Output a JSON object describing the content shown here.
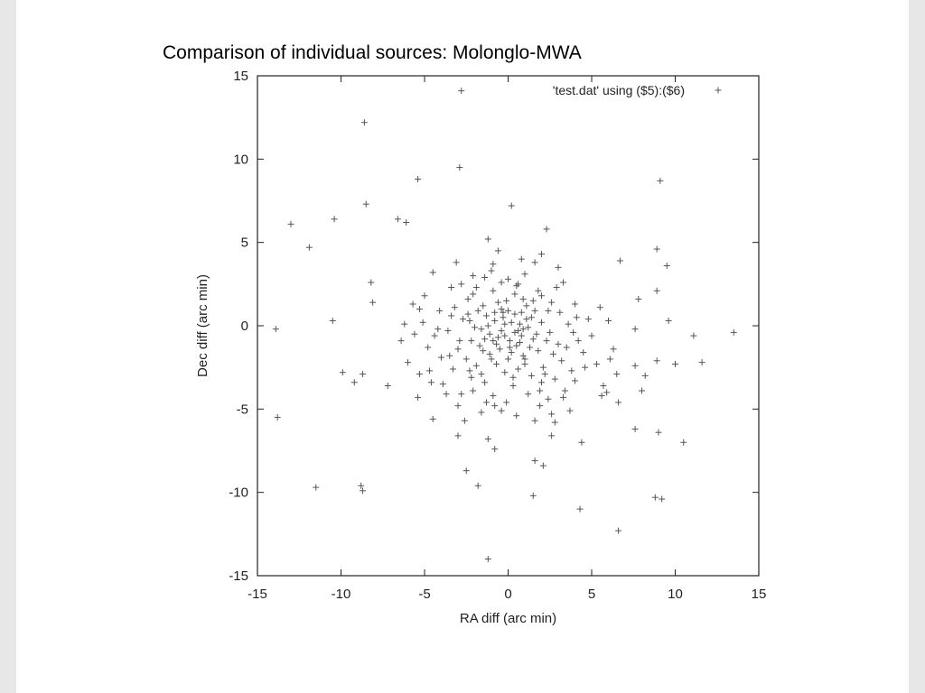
{
  "slide": {
    "title": "Comparison of individual sources:  Molonglo-MWA"
  },
  "chart_data": {
    "type": "scatter",
    "xlabel": "RA diff (arc min)",
    "ylabel": "Dec diff (arc min)",
    "xlim": [
      -15,
      15
    ],
    "ylim": [
      -15,
      15
    ],
    "xticks": [
      -15,
      -10,
      -5,
      0,
      5,
      10,
      15
    ],
    "yticks": [
      -15,
      -10,
      -5,
      0,
      5,
      10,
      15
    ],
    "grid": false,
    "legend_position": "top-right",
    "marker": "plus",
    "marker_color": "#555555",
    "series": [
      {
        "name": "'test.dat' using ($5):($6)",
        "points": [
          [
            -2.8,
            14.1
          ],
          [
            -8.6,
            12.2
          ],
          [
            -2.9,
            9.5
          ],
          [
            -5.4,
            8.8
          ],
          [
            9.1,
            8.7
          ],
          [
            -8.5,
            7.3
          ],
          [
            0.2,
            7.2
          ],
          [
            -13.0,
            6.1
          ],
          [
            -10.4,
            6.4
          ],
          [
            -6.6,
            6.4
          ],
          [
            -6.1,
            6.2
          ],
          [
            2.3,
            5.8
          ],
          [
            -1.2,
            5.2
          ],
          [
            -11.9,
            4.7
          ],
          [
            8.9,
            4.6
          ],
          [
            6.7,
            3.9
          ],
          [
            2.0,
            4.3
          ],
          [
            9.5,
            3.6
          ],
          [
            1.6,
            3.8
          ],
          [
            -0.9,
            3.7
          ],
          [
            -4.5,
            3.2
          ],
          [
            -2.1,
            3.0
          ],
          [
            -8.2,
            2.6
          ],
          [
            -1.4,
            2.9
          ],
          [
            0.6,
            2.5
          ],
          [
            3.3,
            2.6
          ],
          [
            -3.4,
            2.3
          ],
          [
            8.9,
            2.1
          ],
          [
            -5.0,
            1.8
          ],
          [
            -8.1,
            1.4
          ],
          [
            7.8,
            1.6
          ],
          [
            -5.3,
            1.0
          ],
          [
            -3.2,
            1.1
          ],
          [
            4.0,
            1.3
          ],
          [
            -10.5,
            0.3
          ],
          [
            -6.2,
            0.1
          ],
          [
            -13.9,
            -0.2
          ],
          [
            -5.6,
            -0.5
          ],
          [
            4.8,
            0.4
          ],
          [
            6.0,
            0.3
          ],
          [
            9.6,
            0.3
          ],
          [
            13.5,
            -0.4
          ],
          [
            11.1,
            -0.6
          ],
          [
            -4.4,
            -0.6
          ],
          [
            7.6,
            -0.2
          ],
          [
            -0.4,
            -0.3
          ],
          [
            0.2,
            0.2
          ],
          [
            -0.9,
            -0.9
          ],
          [
            0.8,
            -0.6
          ],
          [
            -1.6,
            -0.2
          ],
          [
            1.4,
            0.5
          ],
          [
            -0.3,
            0.8
          ],
          [
            0.5,
            -1.2
          ],
          [
            -2.2,
            -0.9
          ],
          [
            1.8,
            -1.5
          ],
          [
            -1.1,
            -1.7
          ],
          [
            2.5,
            -0.4
          ],
          [
            0.0,
            -2.0
          ],
          [
            -0.6,
            1.4
          ],
          [
            1.1,
            1.2
          ],
          [
            -2.7,
            0.4
          ],
          [
            3.0,
            -1.1
          ],
          [
            -1.9,
            -2.4
          ],
          [
            2.1,
            -2.5
          ],
          [
            0.4,
            1.9
          ],
          [
            -0.2,
            -2.8
          ],
          [
            -1.3,
            0.6
          ],
          [
            1.0,
            -2.3
          ],
          [
            -3.0,
            -1.4
          ],
          [
            3.6,
            0.1
          ],
          [
            -2.4,
            1.6
          ],
          [
            2.6,
            1.4
          ],
          [
            0.7,
            0.1
          ],
          [
            -0.7,
            -1.1
          ],
          [
            1.5,
            -0.8
          ],
          [
            -1.8,
            0.9
          ],
          [
            0.1,
            -0.9
          ],
          [
            -0.4,
            1.0
          ],
          [
            0.9,
            -1.8
          ],
          [
            -2.5,
            -2.0
          ],
          [
            3.2,
            -2.1
          ],
          [
            -3.6,
            -0.3
          ],
          [
            4.2,
            -0.9
          ],
          [
            -4.0,
            -1.9
          ],
          [
            2.8,
            -3.2
          ],
          [
            -1.4,
            -3.4
          ],
          [
            0.3,
            -3.6
          ],
          [
            1.9,
            -3.9
          ],
          [
            -2.1,
            -3.9
          ],
          [
            3.8,
            -2.7
          ],
          [
            -3.3,
            -2.6
          ],
          [
            -0.9,
            -4.2
          ],
          [
            1.2,
            -4.1
          ],
          [
            -0.1,
            -4.6
          ],
          [
            2.4,
            -4.4
          ],
          [
            -2.8,
            -4.1
          ],
          [
            4.5,
            -1.6
          ],
          [
            -4.7,
            -2.7
          ],
          [
            3.4,
            -3.9
          ],
          [
            -3.9,
            -3.5
          ],
          [
            5.3,
            -2.3
          ],
          [
            -5.3,
            -2.9
          ],
          [
            6.3,
            -1.4
          ],
          [
            -6.4,
            -0.9
          ],
          [
            5.7,
            -3.6
          ],
          [
            6.5,
            -2.9
          ],
          [
            7.6,
            -2.4
          ],
          [
            8.2,
            -3.0
          ],
          [
            10.0,
            -2.3
          ],
          [
            11.6,
            -2.2
          ],
          [
            -8.7,
            -2.9
          ],
          [
            -9.9,
            -2.8
          ],
          [
            -9.2,
            -3.4
          ],
          [
            -7.2,
            -3.6
          ],
          [
            -4.5,
            -5.6
          ],
          [
            -3.0,
            -4.8
          ],
          [
            -1.6,
            -5.2
          ],
          [
            -0.8,
            -4.8
          ],
          [
            1.6,
            -5.7
          ],
          [
            2.6,
            -5.3
          ],
          [
            3.7,
            -5.1
          ],
          [
            5.6,
            -4.2
          ],
          [
            6.6,
            -4.6
          ],
          [
            8.0,
            -3.9
          ],
          [
            8.9,
            -2.1
          ],
          [
            -13.8,
            -5.5
          ],
          [
            -3.0,
            -6.6
          ],
          [
            -1.2,
            -6.8
          ],
          [
            2.6,
            -6.6
          ],
          [
            4.4,
            -7.0
          ],
          [
            7.6,
            -6.2
          ],
          [
            9.0,
            -6.4
          ],
          [
            10.5,
            -7.0
          ],
          [
            -0.8,
            -7.4
          ],
          [
            1.6,
            -8.1
          ],
          [
            2.1,
            -8.4
          ],
          [
            -2.5,
            -8.7
          ],
          [
            -1.8,
            -9.6
          ],
          [
            -11.5,
            -9.7
          ],
          [
            -8.8,
            -9.6
          ],
          [
            -8.7,
            -9.9
          ],
          [
            1.5,
            -10.2
          ],
          [
            8.8,
            -10.3
          ],
          [
            9.2,
            -10.4
          ],
          [
            4.3,
            -11.0
          ],
          [
            6.6,
            -12.3
          ],
          [
            -1.2,
            -14.0
          ],
          [
            -0.3,
            0.5
          ],
          [
            0.6,
            -0.3
          ],
          [
            -0.8,
            0.3
          ],
          [
            0.4,
            0.7
          ],
          [
            -0.2,
            -0.6
          ],
          [
            1.2,
            -0.1
          ],
          [
            -1.1,
            -0.5
          ],
          [
            0.7,
            -1.0
          ],
          [
            -0.5,
            -1.4
          ],
          [
            1.6,
            0.9
          ],
          [
            -1.5,
            1.2
          ],
          [
            2.0,
            0.2
          ],
          [
            -2.0,
            -0.1
          ],
          [
            0.9,
            1.6
          ],
          [
            -0.9,
            2.1
          ],
          [
            1.3,
            -1.3
          ],
          [
            -1.7,
            -1.2
          ],
          [
            2.3,
            -0.9
          ],
          [
            -2.4,
            0.7
          ],
          [
            0.2,
            -1.6
          ],
          [
            -0.1,
            1.5
          ],
          [
            2.7,
            -1.7
          ],
          [
            -2.9,
            -0.9
          ],
          [
            3.1,
            0.8
          ],
          [
            -3.4,
            0.6
          ],
          [
            1.8,
            2.1
          ],
          [
            -1.9,
            2.3
          ],
          [
            0.6,
            -2.6
          ],
          [
            -0.7,
            -2.3
          ],
          [
            2.2,
            -2.9
          ],
          [
            -2.3,
            -2.7
          ],
          [
            3.5,
            -1.3
          ],
          [
            -3.5,
            -1.8
          ],
          [
            4.1,
            0.5
          ],
          [
            -4.1,
            0.9
          ],
          [
            0.0,
            2.8
          ],
          [
            1.0,
            3.1
          ],
          [
            -1.0,
            3.3
          ],
          [
            2.9,
            2.3
          ],
          [
            -2.8,
            2.5
          ],
          [
            3.9,
            -0.4
          ],
          [
            -4.2,
            -0.2
          ],
          [
            0.3,
            -3.1
          ],
          [
            1.4,
            -3.0
          ],
          [
            -1.6,
            -2.9
          ],
          [
            4.6,
            -2.5
          ],
          [
            -4.8,
            -1.3
          ],
          [
            3.3,
            -4.3
          ],
          [
            -3.7,
            -4.1
          ],
          [
            2.0,
            -3.4
          ],
          [
            -2.2,
            -3.1
          ],
          [
            5.0,
            -0.6
          ],
          [
            -5.1,
            0.2
          ],
          [
            5.5,
            1.1
          ],
          [
            -5.7,
            1.3
          ],
          [
            0.8,
            4.0
          ],
          [
            -0.6,
            4.5
          ],
          [
            1.9,
            -4.8
          ],
          [
            -1.3,
            -4.6
          ],
          [
            4.0,
            -3.3
          ],
          [
            -4.6,
            -3.4
          ],
          [
            6.1,
            -2.0
          ],
          [
            -6.0,
            -2.2
          ],
          [
            0.5,
            -5.4
          ],
          [
            -0.4,
            -5.1
          ],
          [
            2.8,
            -5.8
          ],
          [
            -2.6,
            -5.7
          ],
          [
            3.0,
            3.5
          ],
          [
            -3.1,
            3.8
          ],
          [
            5.9,
            -4.0
          ],
          [
            -5.4,
            -4.3
          ],
          [
            1.1,
            0.4
          ],
          [
            -1.2,
            0.0
          ],
          [
            0.0,
            0.9
          ],
          [
            0.1,
            -1.3
          ],
          [
            0.9,
            -0.2
          ],
          [
            -0.6,
            -0.7
          ],
          [
            1.7,
            -0.5
          ],
          [
            -1.4,
            -0.8
          ],
          [
            0.4,
            -0.4
          ],
          [
            -0.2,
            0.1
          ],
          [
            0.8,
            0.8
          ],
          [
            -0.8,
            0.8
          ],
          [
            1.5,
            1.5
          ],
          [
            -1.5,
            -1.5
          ],
          [
            2.4,
            0.9
          ],
          [
            -2.3,
            0.3
          ],
          [
            1.0,
            -2.0
          ],
          [
            -1.0,
            -2.0
          ],
          [
            2.0,
            1.8
          ],
          [
            -2.1,
            1.9
          ],
          [
            0.5,
            2.4
          ],
          [
            -0.4,
            2.6
          ]
        ]
      }
    ]
  }
}
